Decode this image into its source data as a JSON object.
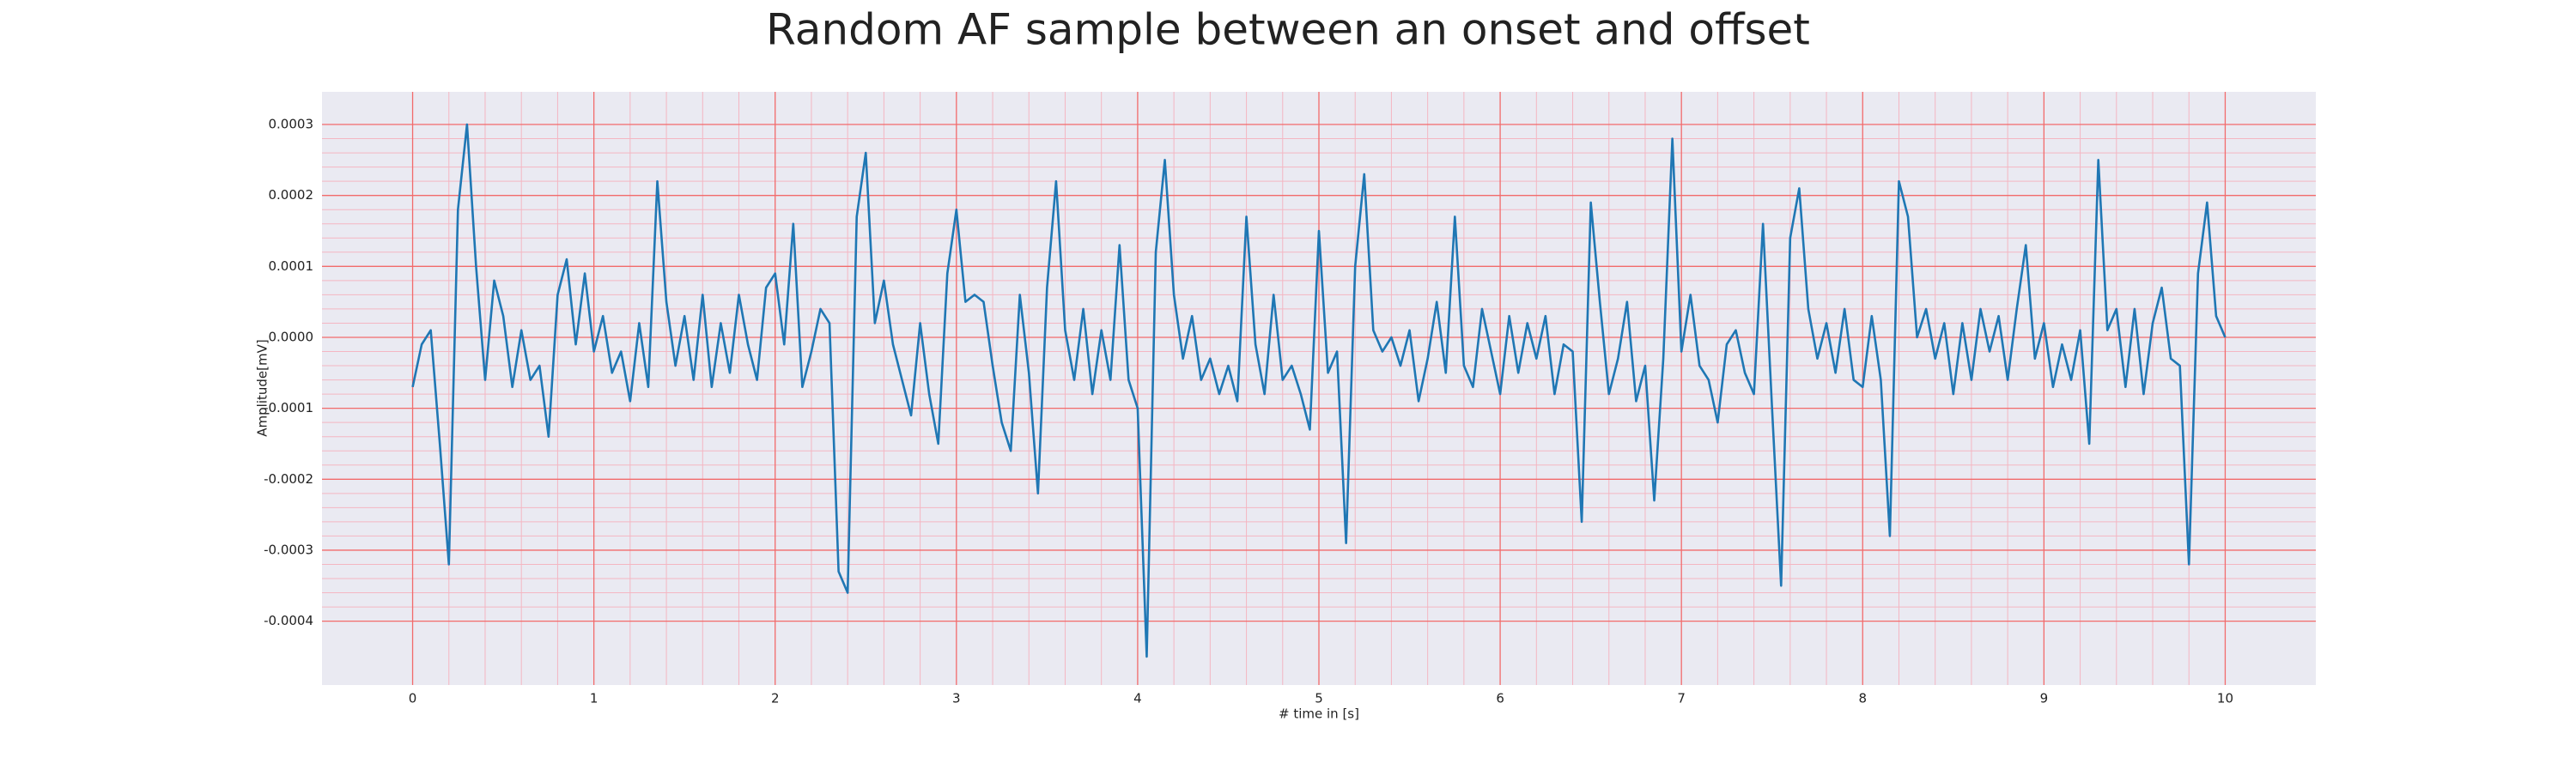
{
  "chart_data": {
    "type": "line",
    "title": "Random AF sample between an onset and offset",
    "x_label": "# time in [s]",
    "y_label": "Amplitude[mV]",
    "color": "#1f77b4",
    "grid": true,
    "xlim": [
      -0.5,
      10.5
    ],
    "ylim": [
      -0.00049,
      0.000346
    ],
    "xticks": [
      0,
      1,
      2,
      3,
      4,
      5,
      6,
      7,
      8,
      9,
      10
    ],
    "yticks": [
      0.0003,
      0.0002,
      0.0001,
      {
        "value": 0,
        "label": "0.0000"
      },
      -0.0001,
      -0.0002,
      -0.0003,
      -0.0004
    ],
    "x": [
      0,
      0.05,
      0.1,
      0.15,
      0.2,
      0.25,
      0.3,
      0.35,
      0.4,
      0.45,
      0.5,
      0.55,
      0.6,
      0.65,
      0.7,
      0.75,
      0.8,
      0.85,
      0.9,
      0.95,
      1,
      1.05,
      1.1,
      1.15,
      1.2,
      1.25,
      1.3,
      1.35,
      1.4,
      1.45,
      1.5,
      1.55,
      1.6,
      1.65,
      1.7,
      1.75,
      1.8,
      1.85,
      1.9,
      1.95,
      2,
      2.05,
      2.1,
      2.15,
      2.2,
      2.25,
      2.3,
      2.35,
      2.4,
      2.45,
      2.5,
      2.55,
      2.6,
      2.65,
      2.7,
      2.75,
      2.8,
      2.85,
      2.9,
      2.95,
      3,
      3.05,
      3.1,
      3.15,
      3.2,
      3.25,
      3.3,
      3.35,
      3.4,
      3.45,
      3.5,
      3.55,
      3.6,
      3.65,
      3.7,
      3.75,
      3.8,
      3.85,
      3.9,
      3.95,
      4,
      4.05,
      4.1,
      4.15,
      4.2,
      4.25,
      4.3,
      4.35,
      4.4,
      4.45,
      4.5,
      4.55,
      4.6,
      4.65,
      4.7,
      4.75,
      4.8,
      4.85,
      4.9,
      4.95,
      5,
      5.05,
      5.1,
      5.15,
      5.2,
      5.25,
      5.3,
      5.35,
      5.4,
      5.45,
      5.5,
      5.55,
      5.6,
      5.65,
      5.7,
      5.75,
      5.8,
      5.85,
      5.9,
      5.95,
      6,
      6.05,
      6.1,
      6.15,
      6.2,
      6.25,
      6.3,
      6.35,
      6.4,
      6.45,
      6.5,
      6.55,
      6.6,
      6.65,
      6.7,
      6.75,
      6.8,
      6.85,
      6.9,
      6.95,
      7,
      7.05,
      7.1,
      7.15,
      7.2,
      7.25,
      7.3,
      7.35,
      7.4,
      7.45,
      7.5,
      7.55,
      7.6,
      7.65,
      7.7,
      7.75,
      7.8,
      7.85,
      7.9,
      7.95,
      8,
      8.05,
      8.1,
      8.15,
      8.2,
      8.25,
      8.3,
      8.35,
      8.4,
      8.45,
      8.5,
      8.55,
      8.6,
      8.65,
      8.7,
      8.75,
      8.8,
      8.85,
      8.9,
      8.95,
      9,
      9.05,
      9.1,
      9.15,
      9.2,
      9.25,
      9.3,
      9.35,
      9.4,
      9.45,
      9.5,
      9.55,
      9.6,
      9.65,
      9.7,
      9.75,
      9.8,
      9.85,
      9.9,
      9.95,
      10
    ],
    "values": [
      -7e-05,
      -1e-05,
      1e-05,
      -0.00015,
      -0.00032,
      0.00018,
      0.0003,
      0.0001,
      -6e-05,
      8e-05,
      3e-05,
      -7e-05,
      1e-05,
      -6e-05,
      -4e-05,
      -0.00014,
      6e-05,
      0.00011,
      -1e-05,
      9e-05,
      -2e-05,
      3e-05,
      -5e-05,
      -2e-05,
      -9e-05,
      2e-05,
      -7e-05,
      0.00022,
      5e-05,
      -4e-05,
      3e-05,
      -6e-05,
      6e-05,
      -7e-05,
      2e-05,
      -5e-05,
      6e-05,
      -1e-05,
      -6e-05,
      7e-05,
      9e-05,
      -1e-05,
      0.00016,
      -7e-05,
      -2e-05,
      4e-05,
      2e-05,
      -0.00033,
      -0.00036,
      0.00017,
      0.00026,
      2e-05,
      8e-05,
      -1e-05,
      -6e-05,
      -0.00011,
      2e-05,
      -8e-05,
      -0.00015,
      9e-05,
      0.00018,
      5e-05,
      6e-05,
      5e-05,
      -4e-05,
      -0.00012,
      -0.00016,
      6e-05,
      -5e-05,
      -0.00022,
      7e-05,
      0.00022,
      1e-05,
      -6e-05,
      4e-05,
      -8e-05,
      1e-05,
      -6e-05,
      0.00013,
      -6e-05,
      -0.0001,
      -0.00045,
      0.00012,
      0.00025,
      6e-05,
      -3e-05,
      3e-05,
      -6e-05,
      -3e-05,
      -8e-05,
      -4e-05,
      -9e-05,
      0.00017,
      -1e-05,
      -8e-05,
      6e-05,
      -6e-05,
      -4e-05,
      -8e-05,
      -0.00013,
      0.00015,
      -5e-05,
      -2e-05,
      -0.00029,
      0.0001,
      0.00023,
      1e-05,
      -2e-05,
      0,
      -4e-05,
      1e-05,
      -9e-05,
      -3e-05,
      5e-05,
      -5e-05,
      0.00017,
      -4e-05,
      -7e-05,
      4e-05,
      -2e-05,
      -8e-05,
      3e-05,
      -5e-05,
      2e-05,
      -3e-05,
      3e-05,
      -8e-05,
      -1e-05,
      -2e-05,
      -0.00026,
      0.00019,
      5e-05,
      -8e-05,
      -3e-05,
      5e-05,
      -9e-05,
      -4e-05,
      -0.00023,
      -3e-05,
      0.00028,
      -2e-05,
      6e-05,
      -4e-05,
      -6e-05,
      -0.00012,
      -1e-05,
      1e-05,
      -5e-05,
      -8e-05,
      0.00016,
      -0.0001,
      -0.00035,
      0.00014,
      0.00021,
      4e-05,
      -3e-05,
      2e-05,
      -5e-05,
      4e-05,
      -6e-05,
      -7e-05,
      3e-05,
      -6e-05,
      -0.00028,
      0.00022,
      0.00017,
      0,
      4e-05,
      -3e-05,
      2e-05,
      -8e-05,
      2e-05,
      -6e-05,
      4e-05,
      -2e-05,
      3e-05,
      -6e-05,
      4e-05,
      0.00013,
      -3e-05,
      2e-05,
      -7e-05,
      -1e-05,
      -6e-05,
      1e-05,
      -0.00015,
      0.00025,
      1e-05,
      4e-05,
      -7e-05,
      4e-05,
      -8e-05,
      2e-05,
      7e-05,
      -3e-05,
      -4e-05,
      -0.00032,
      9e-05,
      0.00019,
      3e-05,
      0
    ]
  }
}
